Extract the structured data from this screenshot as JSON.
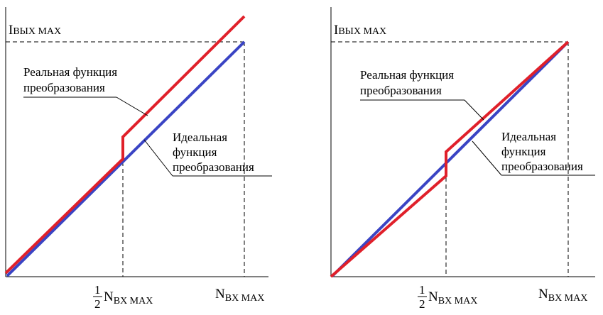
{
  "colors": {
    "real": "#e0202a",
    "ideal": "#3a44c4",
    "axis": "#000000"
  },
  "left_panel": {
    "y_axis_label": {
      "main": "I",
      "sub": "ВЫХ MAX"
    },
    "x_half_label": {
      "num": "1",
      "den": "2",
      "main": "N",
      "sub": "BX MAX"
    },
    "x_max_label": {
      "main": "N",
      "sub": "BX MAX"
    },
    "real_label": [
      "Реальная функция",
      "преобразования"
    ],
    "ideal_label": [
      "Идеальная",
      "функция",
      "преобразования"
    ]
  },
  "right_panel": {
    "y_axis_label": {
      "main": "I",
      "sub": "ВЫХ MAX"
    },
    "x_half_label": {
      "num": "1",
      "den": "2",
      "main": "N",
      "sub": "BX MAX"
    },
    "x_max_label": {
      "main": "N",
      "sub": "BX MAX"
    },
    "real_label": [
      "Реальная функция",
      "преобразования"
    ],
    "ideal_label": [
      "Идеальная",
      "функция",
      "преобразования"
    ]
  }
}
